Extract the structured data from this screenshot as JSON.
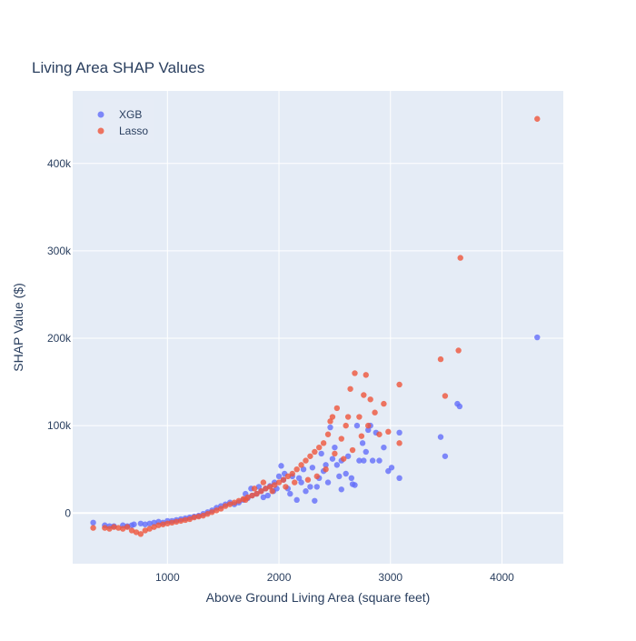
{
  "chart_data": {
    "type": "scatter",
    "title": "Living Area SHAP Values",
    "xlabel": "Above Ground Living Area (square feet)",
    "ylabel": "SHAP Value ($)",
    "xlim": [
      150,
      4550
    ],
    "ylim": [
      -58000,
      483000
    ],
    "x_ticks": [
      1000,
      2000,
      3000,
      4000
    ],
    "x_tick_labels": [
      "1000",
      "2000",
      "3000",
      "4000"
    ],
    "y_ticks": [
      0,
      100000,
      200000,
      300000,
      400000
    ],
    "y_tick_labels": [
      "0",
      "100k",
      "200k",
      "300k",
      "400k"
    ],
    "grid": true,
    "legend_position": "top-left",
    "colors": {
      "plot_bg": "#e5ecf6",
      "grid": "#ffffff",
      "text": "#2a3f5f",
      "xgb": "#636efa",
      "lasso": "#ef553b"
    },
    "series": [
      {
        "name": "XGB",
        "color": "#636efa",
        "points": [
          [
            334,
            -11000
          ],
          [
            438,
            -14000
          ],
          [
            480,
            -15000
          ],
          [
            520,
            -15000
          ],
          [
            600,
            -14000
          ],
          [
            640,
            -15000
          ],
          [
            680,
            -14000
          ],
          [
            700,
            -13000
          ],
          [
            760,
            -12000
          ],
          [
            800,
            -13000
          ],
          [
            840,
            -12000
          ],
          [
            880,
            -11000
          ],
          [
            920,
            -10000
          ],
          [
            960,
            -11000
          ],
          [
            1000,
            -9000
          ],
          [
            1040,
            -9000
          ],
          [
            1080,
            -8000
          ],
          [
            1120,
            -7000
          ],
          [
            1160,
            -6000
          ],
          [
            1200,
            -5000
          ],
          [
            1240,
            -4000
          ],
          [
            1280,
            -3000
          ],
          [
            1320,
            -1000
          ],
          [
            1360,
            1000
          ],
          [
            1400,
            3000
          ],
          [
            1440,
            6000
          ],
          [
            1480,
            8000
          ],
          [
            1520,
            10000
          ],
          [
            1560,
            12000
          ],
          [
            1600,
            10000
          ],
          [
            1640,
            12000
          ],
          [
            1680,
            15000
          ],
          [
            1720,
            17000
          ],
          [
            1760,
            20000
          ],
          [
            1800,
            22000
          ],
          [
            1840,
            25000
          ],
          [
            1880,
            28000
          ],
          [
            1920,
            31000
          ],
          [
            1960,
            35000
          ],
          [
            2000,
            42000
          ],
          [
            2020,
            54000
          ],
          [
            2040,
            38000
          ],
          [
            2080,
            28000
          ],
          [
            2100,
            22000
          ],
          [
            2160,
            15000
          ],
          [
            2200,
            35000
          ],
          [
            2240,
            25000
          ],
          [
            2280,
            30000
          ],
          [
            2320,
            14000
          ],
          [
            2360,
            40000
          ],
          [
            2380,
            68000
          ],
          [
            2420,
            55000
          ],
          [
            2440,
            35000
          ],
          [
            2460,
            98000
          ],
          [
            2480,
            62000
          ],
          [
            2500,
            75000
          ],
          [
            2520,
            55000
          ],
          [
            2540,
            42000
          ],
          [
            2560,
            27000
          ],
          [
            2600,
            45000
          ],
          [
            2620,
            65000
          ],
          [
            2650,
            40000
          ],
          [
            2680,
            32000
          ],
          [
            2700,
            100000
          ],
          [
            2720,
            60000
          ],
          [
            2750,
            80000
          ],
          [
            2780,
            70000
          ],
          [
            2800,
            95000
          ],
          [
            2820,
            100000
          ],
          [
            2840,
            60000
          ],
          [
            2870,
            92000
          ],
          [
            2940,
            75000
          ],
          [
            2980,
            48000
          ],
          [
            3010,
            52000
          ],
          [
            3080,
            40000
          ],
          [
            3080,
            92000
          ],
          [
            3450,
            87000
          ],
          [
            3490,
            65000
          ],
          [
            3600,
            125000
          ],
          [
            3620,
            122000
          ],
          [
            4316,
            201000
          ],
          [
            1700,
            22000
          ],
          [
            1750,
            28000
          ],
          [
            1820,
            30000
          ],
          [
            1860,
            18000
          ],
          [
            1900,
            20000
          ],
          [
            1950,
            25000
          ],
          [
            1980,
            28000
          ],
          [
            2050,
            45000
          ],
          [
            2120,
            42000
          ],
          [
            2180,
            40000
          ],
          [
            2220,
            50000
          ],
          [
            2300,
            52000
          ],
          [
            2340,
            30000
          ],
          [
            2400,
            48000
          ],
          [
            2560,
            60000
          ],
          [
            2660,
            33000
          ],
          [
            2760,
            60000
          ],
          [
            2900,
            60000
          ]
        ]
      },
      {
        "name": "Lasso",
        "color": "#ef553b",
        "points": [
          [
            334,
            -17000
          ],
          [
            438,
            -17000
          ],
          [
            480,
            -18000
          ],
          [
            520,
            -16000
          ],
          [
            560,
            -17000
          ],
          [
            600,
            -18000
          ],
          [
            640,
            -16000
          ],
          [
            680,
            -20000
          ],
          [
            720,
            -22000
          ],
          [
            760,
            -24000
          ],
          [
            800,
            -20000
          ],
          [
            840,
            -18000
          ],
          [
            880,
            -16000
          ],
          [
            920,
            -14000
          ],
          [
            960,
            -13000
          ],
          [
            1000,
            -12000
          ],
          [
            1040,
            -11000
          ],
          [
            1080,
            -10000
          ],
          [
            1120,
            -9000
          ],
          [
            1160,
            -8000
          ],
          [
            1200,
            -7000
          ],
          [
            1240,
            -5000
          ],
          [
            1280,
            -4000
          ],
          [
            1320,
            -3000
          ],
          [
            1360,
            -1000
          ],
          [
            1400,
            1000
          ],
          [
            1440,
            3000
          ],
          [
            1480,
            5000
          ],
          [
            1520,
            8000
          ],
          [
            1560,
            10000
          ],
          [
            1600,
            12000
          ],
          [
            1640,
            14000
          ],
          [
            1680,
            16000
          ],
          [
            1720,
            18000
          ],
          [
            1760,
            20000
          ],
          [
            1800,
            22000
          ],
          [
            1840,
            25000
          ],
          [
            1880,
            28000
          ],
          [
            1920,
            30000
          ],
          [
            1960,
            32000
          ],
          [
            2000,
            35000
          ],
          [
            2040,
            38000
          ],
          [
            2080,
            42000
          ],
          [
            2120,
            45000
          ],
          [
            2160,
            50000
          ],
          [
            2200,
            55000
          ],
          [
            2240,
            60000
          ],
          [
            2280,
            65000
          ],
          [
            2320,
            70000
          ],
          [
            2360,
            75000
          ],
          [
            2400,
            80000
          ],
          [
            2440,
            90000
          ],
          [
            2460,
            105000
          ],
          [
            2480,
            110000
          ],
          [
            2520,
            120000
          ],
          [
            2560,
            85000
          ],
          [
            2600,
            100000
          ],
          [
            2620,
            110000
          ],
          [
            2640,
            142000
          ],
          [
            2680,
            160000
          ],
          [
            2720,
            110000
          ],
          [
            2760,
            135000
          ],
          [
            2780,
            158000
          ],
          [
            2820,
            130000
          ],
          [
            2860,
            115000
          ],
          [
            2940,
            125000
          ],
          [
            2980,
            93000
          ],
          [
            3080,
            147000
          ],
          [
            3080,
            80000
          ],
          [
            3450,
            176000
          ],
          [
            3490,
            134000
          ],
          [
            3610,
            186000
          ],
          [
            3627,
            292000
          ],
          [
            4316,
            451000
          ],
          [
            1700,
            15000
          ],
          [
            1780,
            28000
          ],
          [
            1860,
            35000
          ],
          [
            1940,
            25000
          ],
          [
            2060,
            30000
          ],
          [
            2140,
            35000
          ],
          [
            2260,
            38000
          ],
          [
            2340,
            42000
          ],
          [
            2420,
            50000
          ],
          [
            2500,
            68000
          ],
          [
            2580,
            62000
          ],
          [
            2660,
            72000
          ],
          [
            2740,
            88000
          ],
          [
            2800,
            100000
          ],
          [
            2900,
            90000
          ]
        ]
      }
    ]
  }
}
